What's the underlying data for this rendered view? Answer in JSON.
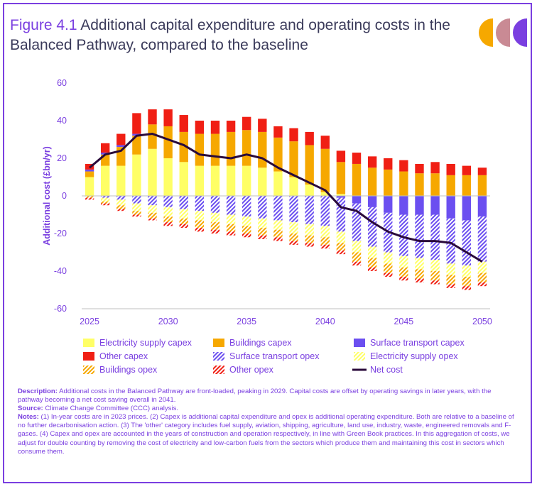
{
  "figure_label": "Figure 4.1",
  "title_text": "Additional capital expenditure and operating costs in the Balanced Pathway, compared to the baseline",
  "colors": {
    "accent": "#7a3fe0",
    "logo": [
      "#f6a800",
      "#c98a94",
      "#7a3fe0"
    ]
  },
  "chart_data": {
    "type": "bar",
    "stacked": true,
    "ylabel": "Additional cost (£bn/yr)",
    "ylim": [
      -60,
      60
    ],
    "yticks": [
      60,
      40,
      20,
      0,
      -20,
      -40,
      -60
    ],
    "xticks": [
      "2025",
      "2030",
      "2035",
      "2040",
      "2045",
      "2050"
    ],
    "grid": false,
    "legend_position": "bottom",
    "categories": [
      "2025",
      "2026",
      "2027",
      "2028",
      "2029",
      "2030",
      "2031",
      "2032",
      "2033",
      "2034",
      "2035",
      "2036",
      "2037",
      "2038",
      "2039",
      "2040",
      "2041",
      "2042",
      "2043",
      "2044",
      "2045",
      "2046",
      "2047",
      "2048",
      "2049",
      "2050"
    ],
    "positive_series": [
      {
        "name": "Electricity supply capex",
        "color": "#ffff66",
        "pattern": "solid",
        "values": [
          10,
          16,
          16,
          22,
          25,
          20,
          18,
          16,
          16,
          16,
          16,
          15,
          13,
          10,
          6,
          2,
          1,
          0,
          0,
          0,
          0,
          0,
          0,
          0,
          0,
          0
        ]
      },
      {
        "name": "Buildings capex",
        "color": "#f6a800",
        "pattern": "solid",
        "values": [
          3,
          6,
          10,
          10,
          13,
          17,
          16,
          17,
          17,
          18,
          19,
          19,
          18,
          19,
          21,
          23,
          17,
          17,
          15,
          14,
          13,
          12,
          12,
          11,
          11,
          11
        ]
      },
      {
        "name": "Surface transport capex",
        "color": "#6b4ff0",
        "pattern": "solid",
        "values": [
          1,
          1,
          1,
          1,
          0,
          0,
          0,
          0,
          0,
          0,
          0,
          0,
          0,
          0,
          0,
          0,
          0,
          0,
          0,
          0,
          0,
          0,
          0,
          0,
          0,
          0
        ]
      },
      {
        "name": "Other capex",
        "color": "#f01f14",
        "pattern": "solid",
        "values": [
          3,
          5,
          6,
          11,
          8,
          9,
          9,
          7,
          7,
          6,
          7,
          7,
          6,
          7,
          7,
          7,
          6,
          6,
          6,
          6,
          6,
          5,
          6,
          6,
          5,
          4
        ]
      }
    ],
    "negative_series": [
      {
        "name": "Surface transport capex",
        "color": "#6b4ff0",
        "pattern": "solid",
        "values": [
          0,
          0,
          0,
          0,
          0,
          0,
          0,
          0,
          0,
          0,
          0,
          0,
          0,
          0,
          0,
          0,
          -1,
          -4,
          -6,
          -9,
          -10,
          -10,
          -10,
          -12,
          -13,
          -11
        ]
      },
      {
        "name": "Surface transport opex",
        "color": "#6b4ff0",
        "pattern": "hatch",
        "values": [
          0,
          -1,
          -2,
          -4,
          -5,
          -6,
          -7,
          -8,
          -9,
          -10,
          -11,
          -12,
          -13,
          -14,
          -15,
          -16,
          -18,
          -20,
          -21,
          -21,
          -22,
          -23,
          -24,
          -24,
          -24,
          -24
        ]
      },
      {
        "name": "Electricity supply opex",
        "color": "#ffff66",
        "pattern": "hatch",
        "values": [
          0,
          -2,
          -3,
          -4,
          -4,
          -5,
          -5,
          -5,
          -5,
          -5,
          -5,
          -5,
          -5,
          -6,
          -6,
          -6,
          -6,
          -6,
          -6,
          -6,
          -6,
          -6,
          -6,
          -6,
          -6,
          -6
        ]
      },
      {
        "name": "Buildings opex",
        "color": "#f6a800",
        "pattern": "hatch",
        "values": [
          -1,
          -1,
          -2,
          -2,
          -3,
          -3,
          -3,
          -4,
          -4,
          -4,
          -4,
          -4,
          -4,
          -4,
          -4,
          -4,
          -4,
          -5,
          -5,
          -5,
          -5,
          -5,
          -5,
          -5,
          -5,
          -5
        ]
      },
      {
        "name": "Other opex",
        "color": "#f01f14",
        "pattern": "hatch",
        "values": [
          -1,
          -1,
          -1,
          -1,
          -1,
          -2,
          -2,
          -2,
          -2,
          -2,
          -2,
          -2,
          -2,
          -2,
          -2,
          -2,
          -2,
          -2,
          -2,
          -2,
          -2,
          -2,
          -2,
          -2,
          -2,
          -2
        ]
      }
    ],
    "line_series": {
      "name": "Net cost",
      "color": "#2a0a3a",
      "values": [
        15,
        22,
        24,
        32,
        33,
        30,
        27,
        22,
        21,
        20,
        22,
        20,
        15,
        11,
        7,
        3,
        -6,
        -8,
        -14,
        -19,
        -22,
        -24,
        -24,
        -25,
        -30,
        -35
      ]
    },
    "legend": [
      {
        "label": "Electricity supply capex",
        "color": "#ffff66",
        "pattern": "solid"
      },
      {
        "label": "Buildings capex",
        "color": "#f6a800",
        "pattern": "solid"
      },
      {
        "label": "Surface transport capex",
        "color": "#6b4ff0",
        "pattern": "solid"
      },
      {
        "label": "Other capex",
        "color": "#f01f14",
        "pattern": "solid"
      },
      {
        "label": "Surface transport opex",
        "color": "#6b4ff0",
        "pattern": "hatch"
      },
      {
        "label": "Electricity supply opex",
        "color": "#ffff66",
        "pattern": "hatch"
      },
      {
        "label": "Buildings opex",
        "color": "#f6a800",
        "pattern": "hatch"
      },
      {
        "label": "Other opex",
        "color": "#f01f14",
        "pattern": "hatch"
      },
      {
        "label": "Net cost",
        "color": "#2a0a3a",
        "pattern": "line"
      }
    ]
  },
  "notes": {
    "description_label": "Description:",
    "description_text": " Additional costs in the Balanced Pathway are front-loaded, peaking in 2029. Capital costs are offset by operating savings in later years, with the pathway becoming a net cost saving overall in 2041.",
    "source_label": "Source:",
    "source_text": " Climate Change Committee (CCC) analysis.",
    "notes_label": "Notes:",
    "notes_text": " (1) In-year costs are in 2023 prices. (2) Capex is additional capital expenditure and opex is additional operating expenditure. Both are relative to a baseline of no further decarbonisation action. (3) The 'other' category includes fuel supply, aviation, shipping, agriculture, land use, industry, waste, engineered removals and F-gases. (4) Capex and opex are accounted in the years of construction and operation respectively, in line with Green Book practices. In this aggregation of costs, we adjust for double counting by removing the cost of electricity and low-carbon fuels from the sectors which produce them and maintaining this cost in sectors which consume them."
  }
}
